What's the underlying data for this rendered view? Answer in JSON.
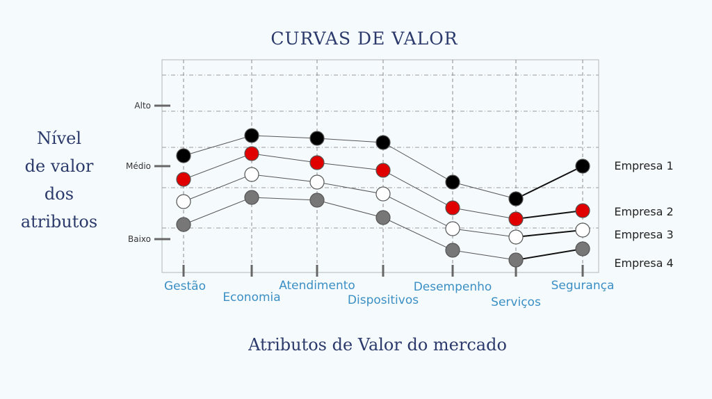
{
  "chart_data": {
    "type": "line",
    "title": "CURVAS DE VALOR",
    "ylabel_lines": [
      "Nível",
      "de valor",
      "dos",
      "atributos"
    ],
    "xlabel": "Atributos de Valor do mercado",
    "categories": [
      "Gestão",
      "Economia",
      "Atendimento",
      "Dispositivos",
      "Desempenho",
      "Serviços",
      "Segurança"
    ],
    "y_ticks": [
      {
        "label": "Alto",
        "value": 3
      },
      {
        "label": "Médio",
        "value": 2
      },
      {
        "label": "Baixo",
        "value": 1
      }
    ],
    "ylim": [
      0.6,
      3.75
    ],
    "grid": true,
    "legend_position": "right",
    "series": [
      {
        "name": "Empresa 1",
        "color": "#000000",
        "values": [
          2.15,
          2.5,
          2.45,
          2.4,
          1.75,
          1.5,
          2.0
        ]
      },
      {
        "name": "Empresa 2",
        "color": "#e00000",
        "values": [
          1.95,
          2.2,
          2.05,
          1.95,
          1.45,
          1.3,
          1.45
        ]
      },
      {
        "name": "Empresa 3",
        "color": "#ffffff",
        "values": [
          1.6,
          1.9,
          1.8,
          1.65,
          1.2,
          1.05,
          1.15
        ]
      },
      {
        "name": "Empresa 4",
        "color": "#777777",
        "values": [
          1.3,
          1.6,
          1.55,
          1.3,
          0.95,
          0.8,
          0.95
        ]
      }
    ]
  }
}
